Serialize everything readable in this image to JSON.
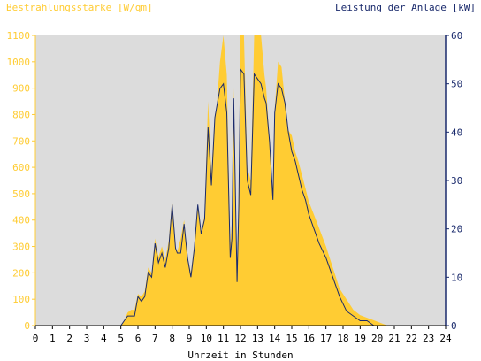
{
  "chart_data": {
    "type": "area",
    "left_axis_label": "Bestrahlungsstärke [W/qm]",
    "right_axis_label": "Leistung der Anlage [kW]",
    "xlabel": "Uhrzeit in Stunden",
    "x_ticks": [
      "0",
      "1",
      "2",
      "3",
      "4",
      "5",
      "6",
      "7",
      "8",
      "9",
      "10",
      "11",
      "12",
      "13",
      "14",
      "15",
      "16",
      "17",
      "18",
      "19",
      "20",
      "21",
      "22",
      "23",
      "24"
    ],
    "y_left_ticks": [
      "0",
      "100",
      "200",
      "300",
      "400",
      "500",
      "600",
      "700",
      "800",
      "900",
      "1000",
      "1100"
    ],
    "y_right_ticks": [
      "0",
      "10",
      "20",
      "30",
      "40",
      "50",
      "60"
    ],
    "xlim": [
      0,
      24
    ],
    "ylim_left": [
      0,
      1100
    ],
    "ylim_right": [
      0,
      60
    ],
    "grid": false,
    "colors": {
      "plot_background": "#dcdcdc",
      "irradiance_fill": "#ffcc33",
      "power_line": "#1a2a6c",
      "left_axis_text": "#ffcc33",
      "right_axis_text": "#1a2a6c",
      "axis_line": "#000000"
    },
    "series": [
      {
        "axis": "left",
        "style": "filled-area",
        "x": [
          0,
          5.0,
          5.2,
          5.4,
          5.6,
          5.8,
          6.0,
          6.2,
          6.4,
          6.6,
          6.8,
          7.0,
          7.2,
          7.4,
          7.6,
          7.8,
          8.0,
          8.2,
          8.3,
          8.5,
          8.7,
          8.9,
          9.1,
          9.3,
          9.5,
          9.7,
          9.9,
          10.1,
          10.3,
          10.5,
          10.6,
          10.8,
          11.0,
          11.2,
          11.4,
          11.5,
          11.6,
          11.8,
          11.9,
          12.0,
          12.2,
          12.4,
          12.6,
          12.8,
          13.0,
          13.2,
          13.4,
          13.5,
          13.7,
          13.9,
          14.0,
          14.2,
          14.4,
          14.6,
          14.8,
          15.0,
          15.2,
          15.4,
          15.6,
          15.8,
          16.0,
          16.3,
          16.6,
          17.0,
          17.4,
          17.8,
          18.2,
          18.6,
          19.0,
          19.4,
          19.8,
          20.2,
          20.6,
          21.0,
          24
        ],
        "y": [
          0,
          0,
          20,
          50,
          60,
          60,
          120,
          110,
          130,
          220,
          200,
          330,
          260,
          300,
          250,
          320,
          480,
          300,
          280,
          330,
          400,
          260,
          200,
          310,
          460,
          350,
          420,
          850,
          580,
          800,
          820,
          1000,
          1100,
          950,
          300,
          400,
          900,
          180,
          500,
          1100,
          1100,
          600,
          550,
          1100,
          1100,
          1100,
          950,
          900,
          700,
          500,
          820,
          1000,
          980,
          850,
          740,
          720,
          660,
          620,
          570,
          520,
          470,
          420,
          370,
          300,
          220,
          140,
          100,
          60,
          40,
          30,
          20,
          10,
          0,
          0,
          0
        ]
      },
      {
        "axis": "right",
        "style": "line",
        "x": [
          0,
          5.0,
          5.2,
          5.4,
          5.6,
          5.8,
          6.0,
          6.2,
          6.4,
          6.6,
          6.8,
          7.0,
          7.2,
          7.4,
          7.6,
          7.8,
          8.0,
          8.2,
          8.3,
          8.5,
          8.7,
          8.9,
          9.1,
          9.3,
          9.5,
          9.7,
          9.9,
          10.1,
          10.3,
          10.5,
          10.6,
          10.8,
          11.0,
          11.2,
          11.4,
          11.5,
          11.6,
          11.8,
          11.9,
          12.0,
          12.2,
          12.4,
          12.6,
          12.8,
          13.0,
          13.2,
          13.4,
          13.5,
          13.7,
          13.9,
          14.0,
          14.2,
          14.4,
          14.6,
          14.8,
          15.0,
          15.2,
          15.4,
          15.6,
          15.8,
          16.0,
          16.3,
          16.6,
          17.0,
          17.4,
          17.8,
          18.2,
          18.6,
          19.0,
          19.4,
          19.8,
          20.2,
          20.6,
          21.0,
          24
        ],
        "y": [
          0,
          0,
          1,
          2,
          2,
          2,
          6,
          5,
          6,
          11,
          10,
          17,
          13,
          15,
          12,
          16,
          25,
          16,
          15,
          15,
          21,
          14,
          10,
          16,
          25,
          19,
          22,
          41,
          29,
          43,
          45,
          49,
          50,
          44,
          14,
          18,
          47,
          9,
          25,
          53,
          52,
          30,
          27,
          52,
          51,
          50,
          47,
          46,
          38,
          26,
          44,
          50,
          49,
          46,
          40,
          36,
          34,
          31,
          28,
          26,
          23,
          20,
          17,
          14,
          10,
          6,
          3,
          2,
          1,
          1,
          0,
          0,
          0,
          0,
          0
        ]
      }
    ]
  }
}
